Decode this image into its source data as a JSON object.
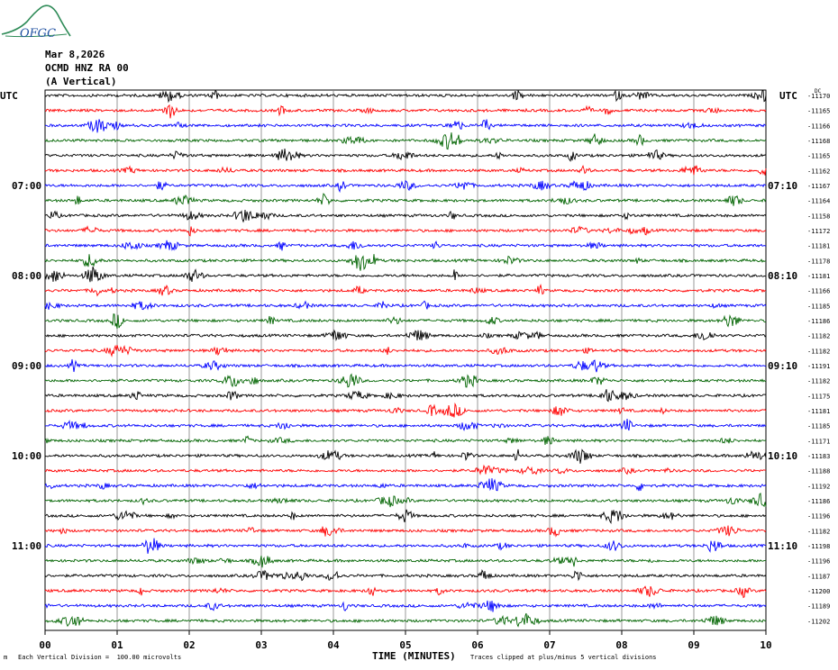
{
  "header": {
    "logo_text": "OFGC",
    "date": "Mar 8,2026",
    "station": "OCMD HNZ RA 00",
    "component": "(A Vertical)"
  },
  "left_axis_label": "UTC",
  "right_axis_label": "UTC",
  "right_offset_header": "DC",
  "footer": {
    "scale_note": "Each Vertical Division =  100.00 microvolts",
    "clip_note": "Traces clipped at plus/minus 5 vertical divisions",
    "corner_mark": "m"
  },
  "colors": {
    "black": "#000000",
    "red": "#ff0000",
    "blue": "#0000ff",
    "green": "#006400",
    "grid": "#808080",
    "logo": "#2e8b57"
  },
  "chart_data": {
    "type": "line",
    "title": "Mar 8,2026 OCMD HNZ RA 00 (A Vertical)",
    "xlabel": "TIME (MINUTES)",
    "ylabel": "UTC",
    "x_ticks": [
      "00",
      "01",
      "02",
      "03",
      "04",
      "05",
      "06",
      "07",
      "08",
      "09",
      "10"
    ],
    "xlim": [
      0,
      10
    ],
    "grid": true,
    "left_time_labels": [
      {
        "row": 6,
        "text": "07:00"
      },
      {
        "row": 12,
        "text": "08:00"
      },
      {
        "row": 18,
        "text": "09:00"
      },
      {
        "row": 24,
        "text": "10:00"
      },
      {
        "row": 30,
        "text": "11:00"
      }
    ],
    "right_time_labels": [
      {
        "row": 6,
        "text": "07:10"
      },
      {
        "row": 12,
        "text": "08:10"
      },
      {
        "row": 18,
        "text": "09:10"
      },
      {
        "row": 24,
        "text": "10:10"
      },
      {
        "row": 30,
        "text": "11:10"
      }
    ],
    "trace_color_cycle": [
      "black",
      "red",
      "blue",
      "green"
    ],
    "trace_dc_offsets": [
      -11170,
      -11165,
      -11166,
      -11168,
      -11165,
      -11162,
      -11167,
      -11164,
      -11158,
      -11172,
      -11181,
      -11178,
      -11181,
      -11166,
      -11185,
      -11186,
      -11182,
      -11182,
      -11191,
      -11182,
      -11175,
      -11181,
      -11185,
      -11171,
      -11183,
      -11188,
      -11192,
      -11186,
      -11196,
      -11182,
      -11198,
      -11196,
      -11187,
      -11200,
      -11189,
      -11202
    ]
  }
}
